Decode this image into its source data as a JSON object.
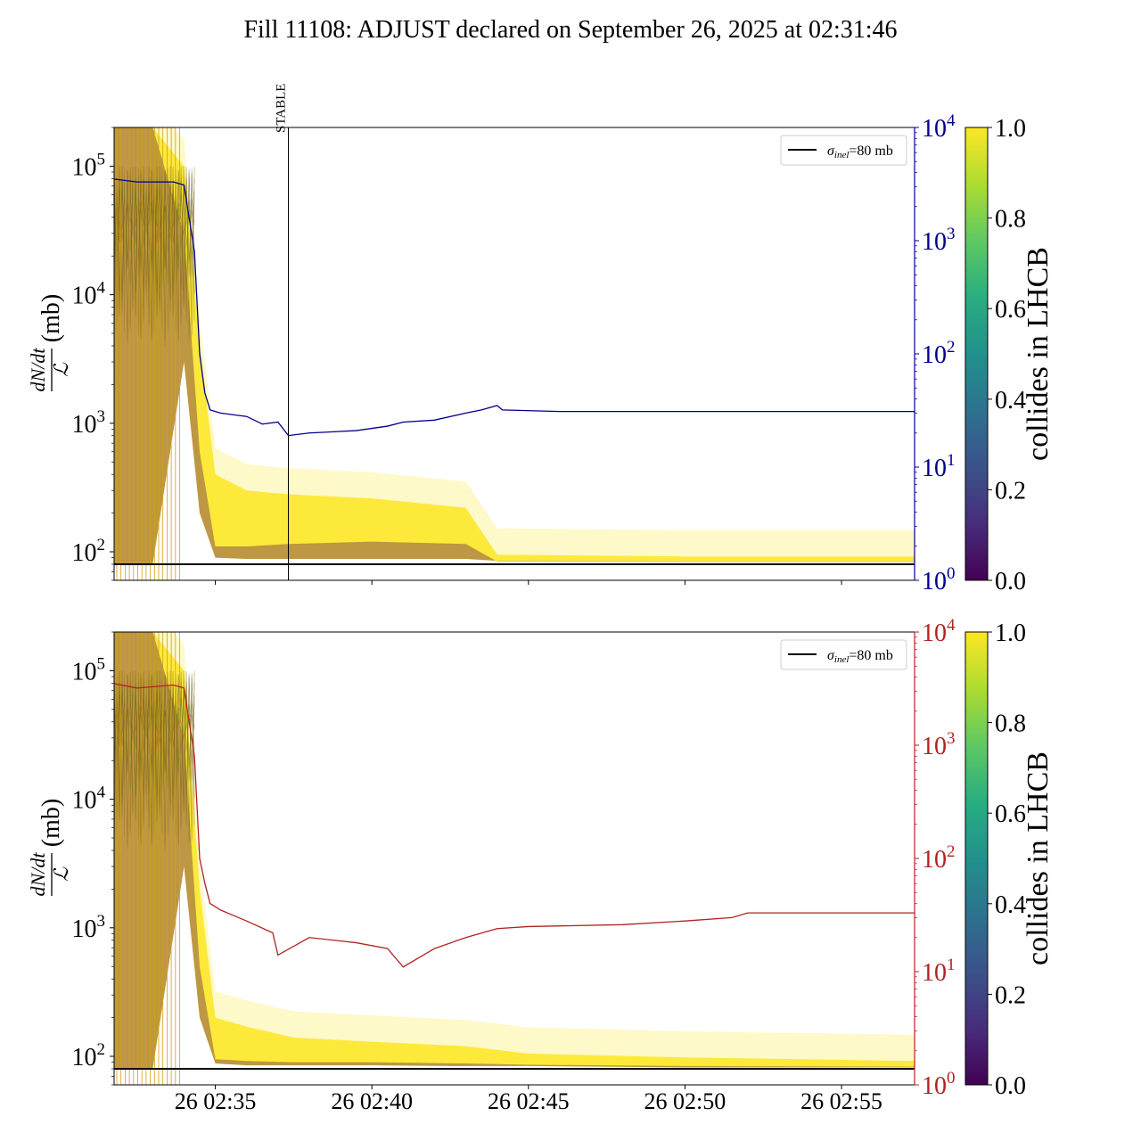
{
  "title": "Fill 11108: ADJUST declared on September 26, 2025 at 02:31:46",
  "colors": {
    "top_right_axis": "#00008b",
    "bottom_right_axis": "#b22222",
    "inel_line": "#000000",
    "viridis_low": "#440154",
    "viridis_high": "#fde725"
  },
  "chart_data": [
    {
      "type": "line",
      "panel": "top",
      "ylabel_left": "dN/dt / ℒ (mb)",
      "yscale_left": "log",
      "ylim_left": [
        60,
        200000
      ],
      "left_ticks": [
        {
          "v": 100,
          "base": "10",
          "exp": "2"
        },
        {
          "v": 1000,
          "base": "10",
          "exp": "3"
        },
        {
          "v": 10000,
          "base": "10",
          "exp": "4"
        },
        {
          "v": 100000,
          "base": "10",
          "exp": "5"
        }
      ],
      "yscale_right": "log",
      "ylim_right": [
        1,
        10000
      ],
      "right_ticks": [
        {
          "v": 1,
          "base": "10",
          "exp": "0"
        },
        {
          "v": 10,
          "base": "10",
          "exp": "1"
        },
        {
          "v": 100,
          "base": "10",
          "exp": "2"
        },
        {
          "v": 1000,
          "base": "10",
          "exp": "3"
        },
        {
          "v": 10000,
          "base": "10",
          "exp": "4"
        }
      ],
      "xlim": [
        "02:31:46",
        "02:57:20"
      ],
      "legend": {
        "label_sym": "σ",
        "label_sub": "inel",
        "label_rest": "=80 mb",
        "placement": "top-right"
      },
      "inel_value_mb": 80,
      "annotation": {
        "text": "STABLE",
        "x": "02:37:20"
      },
      "band_lower_x": [
        "02:31:46",
        "02:33:00",
        "02:34:00",
        "02:34:30",
        "02:35:00",
        "02:36:00",
        "02:37:20",
        "02:40:00",
        "02:43:00",
        "02:44:00",
        "02:50:00",
        "02:57:20"
      ],
      "band_lower_y": [
        80,
        80,
        3000,
        200,
        90,
        88,
        88,
        88,
        88,
        85,
        84,
        84
      ],
      "band_upper_y": [
        200000,
        200000,
        100000,
        4000,
        400,
        300,
        280,
        260,
        220,
        95,
        92,
        92
      ],
      "purple_upper_y": [
        200000,
        200000,
        30000,
        600,
        110,
        110,
        115,
        120,
        115,
        84,
        83,
        83
      ],
      "series": [
        {
          "axis": "right",
          "x": [
            "02:31:46",
            "02:32:30",
            "02:33:40",
            "02:34:00",
            "02:34:20",
            "02:34:30",
            "02:34:40",
            "02:34:50",
            "02:35:10",
            "02:36:00",
            "02:36:30",
            "02:37:00",
            "02:37:20",
            "02:38:00",
            "02:39:30",
            "02:40:30",
            "02:41:00",
            "02:42:00",
            "02:43:00",
            "02:43:30",
            "02:44:00",
            "02:44:10",
            "02:46:00",
            "02:50:00",
            "02:55:00",
            "02:57:20"
          ],
          "y": [
            3500,
            3300,
            3300,
            3100,
            800,
            100,
            45,
            32,
            30,
            28,
            24,
            25,
            19,
            20,
            21,
            23,
            25,
            26,
            30,
            32,
            35,
            32,
            31,
            31,
            31,
            31
          ]
        }
      ]
    },
    {
      "type": "line",
      "panel": "bottom",
      "ylabel_left": "dN/dt / ℒ (mb)",
      "yscale_left": "log",
      "ylim_left": [
        60,
        200000
      ],
      "left_ticks": [
        {
          "v": 100,
          "base": "10",
          "exp": "2"
        },
        {
          "v": 1000,
          "base": "10",
          "exp": "3"
        },
        {
          "v": 10000,
          "base": "10",
          "exp": "4"
        },
        {
          "v": 100000,
          "base": "10",
          "exp": "5"
        }
      ],
      "yscale_right": "log",
      "ylim_right": [
        1,
        10000
      ],
      "right_ticks": [
        {
          "v": 1,
          "base": "10",
          "exp": "0"
        },
        {
          "v": 10,
          "base": "10",
          "exp": "1"
        },
        {
          "v": 100,
          "base": "10",
          "exp": "2"
        },
        {
          "v": 1000,
          "base": "10",
          "exp": "3"
        },
        {
          "v": 10000,
          "base": "10",
          "exp": "4"
        }
      ],
      "xlim": [
        "02:31:46",
        "02:57:20"
      ],
      "xticks": [
        {
          "t": "02:35:00",
          "label": "26 02:35"
        },
        {
          "t": "02:40:00",
          "label": "26 02:40"
        },
        {
          "t": "02:45:00",
          "label": "26 02:45"
        },
        {
          "t": "02:50:00",
          "label": "26 02:50"
        },
        {
          "t": "02:55:00",
          "label": "26 02:55"
        }
      ],
      "legend": {
        "label_sym": "σ",
        "label_sub": "inel",
        "label_rest": "=80 mb",
        "placement": "top-right"
      },
      "inel_value_mb": 80,
      "band_lower_x": [
        "02:31:46",
        "02:33:00",
        "02:34:00",
        "02:34:30",
        "02:35:00",
        "02:36:00",
        "02:37:30",
        "02:40:00",
        "02:43:00",
        "02:45:00",
        "02:50:00",
        "02:57:20"
      ],
      "band_lower_y": [
        80,
        80,
        3000,
        200,
        88,
        85,
        85,
        85,
        84,
        84,
        82,
        82
      ],
      "band_upper_y": [
        200000,
        200000,
        100000,
        2000,
        200,
        170,
        140,
        130,
        120,
        105,
        98,
        92
      ],
      "purple_upper_y": [
        200000,
        200000,
        30000,
        500,
        95,
        92,
        90,
        90,
        88,
        86,
        84,
        83
      ],
      "series": [
        {
          "axis": "right",
          "x": [
            "02:31:46",
            "02:32:30",
            "02:33:40",
            "02:34:00",
            "02:34:20",
            "02:34:30",
            "02:34:40",
            "02:34:50",
            "02:35:10",
            "02:36:00",
            "02:36:50",
            "02:37:00",
            "02:38:00",
            "02:39:30",
            "02:40:30",
            "02:41:00",
            "02:42:00",
            "02:43:00",
            "02:44:00",
            "02:45:00",
            "02:48:00",
            "02:50:00",
            "02:51:30",
            "02:52:00",
            "02:55:00",
            "02:57:20"
          ],
          "y": [
            3500,
            3200,
            3400,
            3200,
            800,
            100,
            60,
            40,
            35,
            28,
            22,
            14,
            20,
            18,
            16,
            11,
            16,
            20,
            24,
            25,
            26,
            28,
            30,
            33,
            33,
            33
          ]
        }
      ]
    }
  ],
  "colorbar": {
    "label": "collides in LHCB",
    "ticks": [
      "0.0",
      "0.2",
      "0.4",
      "0.6",
      "0.8",
      "1.0"
    ],
    "range": [
      0,
      1
    ]
  }
}
